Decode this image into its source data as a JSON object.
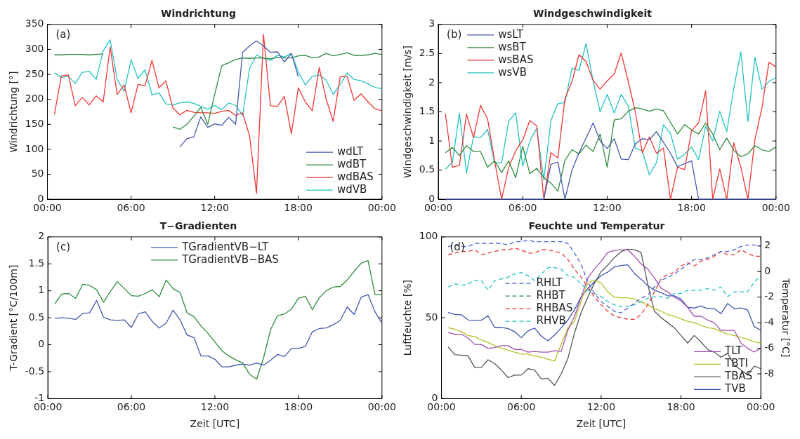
{
  "chart_data": [
    {
      "type": "line",
      "title": "Windrichtung",
      "ylabel": "Windrichtung [°]",
      "annotations": [
        "(a)"
      ],
      "legend": "bottom right",
      "grid": false,
      "x": [
        0.5,
        1,
        1.5,
        2,
        2.5,
        3,
        3.5,
        4,
        4.5,
        5,
        5.5,
        6,
        6.5,
        7,
        7.5,
        8,
        8.5,
        9,
        9.5,
        10,
        10.5,
        11,
        11.5,
        12,
        12.5,
        13,
        13.5,
        14,
        14.5,
        15,
        15.5,
        16,
        16.5,
        17,
        17.5,
        18,
        18.5,
        19,
        19.5,
        20,
        20.5,
        21,
        21.5,
        22,
        22.5,
        23,
        23.5,
        24
      ],
      "xlim": [
        0,
        24
      ],
      "xticks": [
        {
          "value": 0,
          "label": "00:00"
        },
        {
          "value": 6,
          "label": "06:00"
        },
        {
          "value": 12,
          "label": "12:00"
        },
        {
          "value": 18,
          "label": "18:00"
        },
        {
          "value": 24,
          "label": "00:00"
        }
      ],
      "ylim": [
        0,
        350
      ],
      "yticks": [
        0,
        50,
        100,
        150,
        200,
        250,
        300,
        350
      ],
      "series": [
        {
          "name": "wdLT",
          "color": "#4357ad",
          "values": [
            null,
            null,
            null,
            null,
            null,
            null,
            null,
            null,
            null,
            null,
            null,
            null,
            null,
            null,
            null,
            null,
            null,
            null,
            105,
            121,
            125,
            165,
            144,
            151,
            148,
            164,
            150,
            294,
            307,
            317,
            307,
            294,
            295,
            275,
            292,
            245,
            null,
            null,
            null,
            null,
            null,
            null,
            null,
            null,
            null,
            null,
            null,
            null
          ]
        },
        {
          "name": "wdBT",
          "color": "#2e8b3c",
          "values": [
            289,
            289,
            290,
            290,
            290,
            289,
            290,
            291,
            null,
            null,
            null,
            null,
            null,
            null,
            null,
            null,
            null,
            145,
            140,
            150,
            166,
            184,
            150,
            210,
            267,
            273,
            280,
            283,
            282,
            283,
            283,
            281,
            284,
            283,
            283,
            287,
            288,
            283,
            285,
            292,
            287,
            290,
            293,
            288,
            288,
            289,
            292,
            290
          ]
        },
        {
          "name": "wdBAS",
          "color": "#f03535",
          "values": [
            170,
            247,
            249,
            187,
            204,
            189,
            207,
            195,
            305,
            210,
            229,
            173,
            230,
            227,
            278,
            223,
            237,
            183,
            169,
            178,
            174,
            173,
            173,
            172,
            176,
            178,
            168,
            173,
            127,
            12,
            330,
            187,
            186,
            206,
            131,
            223,
            195,
            177,
            264,
            200,
            156,
            245,
            246,
            198,
            211,
            195,
            181,
            177
          ]
        },
        {
          "name": "wdVB",
          "color": "#25c2c2",
          "values": [
            253,
            244,
            246,
            232,
            254,
            256,
            240,
            297,
            319,
            240,
            216,
            279,
            242,
            259,
            209,
            213,
            191,
            189,
            193,
            195,
            192,
            186,
            180,
            188,
            179,
            193,
            188,
            168,
            262,
            289,
            282,
            278,
            288,
            285,
            292,
            255,
            229,
            246,
            249,
            238,
            210,
            230,
            253,
            240,
            237,
            231,
            224,
            221
          ]
        }
      ]
    },
    {
      "type": "line",
      "title": "Windgeschwindigkeit",
      "ylabel": "Windgeschwindigkeit [m/s]",
      "annotations": [
        "(b)"
      ],
      "legend": "top left",
      "grid": false,
      "x": [
        0.5,
        1,
        1.5,
        2,
        2.5,
        3,
        3.5,
        4,
        4.5,
        5,
        5.5,
        6,
        6.5,
        7,
        7.5,
        8,
        8.5,
        9,
        9.5,
        10,
        10.5,
        11,
        11.5,
        12,
        12.5,
        13,
        13.5,
        14,
        14.5,
        15,
        15.5,
        16,
        16.5,
        17,
        17.5,
        18,
        18.5,
        19,
        19.5,
        20,
        20.5,
        21,
        21.5,
        22,
        22.5,
        23,
        23.5,
        24
      ],
      "xlim": [
        0,
        24
      ],
      "xticks": [
        {
          "value": 0,
          "label": "00:00"
        },
        {
          "value": 6,
          "label": "06:00"
        },
        {
          "value": 12,
          "label": "12:00"
        },
        {
          "value": 18,
          "label": "18:00"
        },
        {
          "value": 24,
          "label": "00:00"
        }
      ],
      "ylim": [
        0,
        3
      ],
      "yticks": [
        0,
        0.5,
        1,
        1.5,
        2,
        2.5,
        3
      ],
      "series": [
        {
          "name": "wsLT",
          "color": "#4357ad",
          "values": [
            0,
            0,
            0,
            0,
            0,
            0,
            0,
            0,
            0,
            0,
            0,
            0,
            0,
            0,
            0,
            0.6,
            0.64,
            0,
            0.5,
            0.8,
            1.05,
            1.31,
            1.0,
            0.87,
            1.04,
            0.69,
            0.68,
            0.95,
            1.04,
            1.02,
            1.16,
            0.98,
            0.79,
            0.56,
            0.61,
            0.66,
            0,
            0,
            0,
            0,
            0,
            0,
            0,
            0,
            0,
            0,
            0,
            0
          ]
        },
        {
          "name": "wsBT",
          "color": "#2e8b3c",
          "values": [
            0.8,
            0.89,
            0.75,
            0.92,
            0.82,
            0.82,
            0.55,
            0.66,
            0.46,
            0.66,
            0.37,
            0.91,
            0.44,
            0.53,
            0.37,
            0.28,
            0.14,
            0.67,
            0.85,
            0.78,
            0.93,
            0.82,
            1.12,
            0.55,
            1.36,
            1.38,
            1.51,
            1.57,
            1.55,
            1.51,
            1.55,
            1.52,
            1.32,
            1.12,
            1.28,
            1.19,
            1.12,
            1.31,
            1.12,
            0.85,
            1.05,
            0.84,
            0.73,
            0.78,
            0.92,
            0.85,
            0.82,
            0.9
          ]
        },
        {
          "name": "wsBAS",
          "color": "#f03535",
          "values": [
            1.47,
            0.55,
            0.58,
            1.46,
            1.06,
            1.61,
            1.38,
            0.66,
            0,
            0.55,
            0.83,
            1.02,
            1.35,
            1.26,
            0,
            0.8,
            0.71,
            1.73,
            2.02,
            2.48,
            2.36,
            2.04,
            1.89,
            2.03,
            2.15,
            2.51,
            2.02,
            1.5,
            0.8,
            1.07,
            0.79,
            0.88,
            0,
            0.55,
            0.51,
            1.18,
            1.31,
            1.86,
            0,
            0.52,
            0,
            0.97,
            0.55,
            0,
            1.02,
            1.57,
            2.35,
            2.27
          ]
        },
        {
          "name": "wsVB",
          "color": "#25c2c2",
          "values": [
            0.52,
            0.63,
            1.48,
            0.45,
            1.07,
            1.06,
            1.2,
            0.62,
            0.63,
            1.34,
            1.48,
            0.57,
            1.0,
            1.22,
            0.33,
            1.35,
            1.64,
            1.66,
            2.25,
            2.21,
            2.67,
            2.03,
            1.5,
            1.8,
            1.48,
            1.8,
            1.6,
            0.88,
            0.83,
            0.42,
            0.63,
            1.28,
            1.13,
            0.69,
            0.77,
            0.9,
            0.68,
            1.25,
            1.0,
            1.51,
            1.16,
            1.9,
            2.53,
            1.33,
            2.44,
            1.89,
            2.02,
            2.09
          ]
        }
      ]
    },
    {
      "type": "line",
      "title": "T−Gradienten",
      "xlabel": "Zeit [UTC]",
      "ylabel": "T-Gradient [°C/100m]",
      "annotations": [
        "(c)"
      ],
      "legend": "top",
      "grid": false,
      "x": [
        0.5,
        1,
        1.5,
        2,
        2.5,
        3,
        3.5,
        4,
        4.5,
        5,
        5.5,
        6,
        6.5,
        7,
        7.5,
        8,
        8.5,
        9,
        9.5,
        10,
        10.5,
        11,
        11.5,
        12,
        12.5,
        13,
        13.5,
        14,
        14.5,
        15,
        15.5,
        16,
        16.5,
        17,
        17.5,
        18,
        18.5,
        19,
        19.5,
        20,
        20.5,
        21,
        21.5,
        22,
        22.5,
        23,
        23.5,
        24
      ],
      "xlim": [
        0,
        24
      ],
      "xticks": [
        {
          "value": 0,
          "label": "00:00"
        },
        {
          "value": 6,
          "label": "06:00"
        },
        {
          "value": 12,
          "label": "12:00"
        },
        {
          "value": 18,
          "label": "18:00"
        },
        {
          "value": 24,
          "label": "00:00"
        }
      ],
      "ylim": [
        -1,
        2
      ],
      "yticks": [
        -1,
        -0.5,
        0,
        0.5,
        1,
        1.5,
        2
      ],
      "series": [
        {
          "name": "TGradientVB−LT",
          "color": "#4357ad",
          "values": [
            0.49,
            0.5,
            0.49,
            0.47,
            0.58,
            0.59,
            0.82,
            0.51,
            0.46,
            0.45,
            0.46,
            0.32,
            0.57,
            0.61,
            0.43,
            0.31,
            0.4,
            0.64,
            0.46,
            0.18,
            0.13,
            -0.21,
            -0.21,
            -0.27,
            -0.41,
            -0.41,
            -0.38,
            -0.36,
            -0.38,
            -0.34,
            -0.38,
            -0.29,
            -0.18,
            -0.22,
            -0.07,
            -0.07,
            -0.03,
            0.24,
            0.3,
            0.31,
            0.37,
            0.45,
            0.7,
            0.56,
            0.88,
            0.93,
            0.61,
            0.4
          ]
        },
        {
          "name": "TGradientVB−BAS",
          "color": "#2e8b3c",
          "values": [
            0.76,
            0.94,
            0.95,
            0.86,
            1.12,
            1.1,
            1.02,
            0.79,
            0.99,
            1.17,
            1.04,
            0.91,
            0.9,
            0.95,
            1.02,
            0.89,
            1.2,
            1.04,
            0.97,
            0.59,
            0.52,
            0.35,
            0.21,
            0.05,
            -0.11,
            -0.21,
            -0.28,
            -0.34,
            -0.55,
            -0.64,
            -0.24,
            0.28,
            0.54,
            0.57,
            0.66,
            0.86,
            0.9,
            0.65,
            0.87,
            1.0,
            1.07,
            1.08,
            1.2,
            1.36,
            1.51,
            1.56,
            0.93,
            0.93
          ]
        }
      ]
    },
    {
      "type": "line",
      "title": "Feuchte und Temperatur",
      "xlabel": "Zeit [UTC]",
      "ylabel": "Luftfeuchte [%]",
      "y2label": "Temperatur [°C]",
      "annotations": [
        "(d)"
      ],
      "legend": [
        "left",
        "bottom right"
      ],
      "grid": false,
      "x": [
        0.5,
        1,
        1.5,
        2,
        2.5,
        3,
        3.5,
        4,
        4.5,
        5,
        5.5,
        6,
        6.5,
        7,
        7.5,
        8,
        8.5,
        9,
        9.5,
        10,
        10.5,
        11,
        11.5,
        12,
        12.5,
        13,
        13.5,
        14,
        14.5,
        15,
        15.5,
        16,
        16.5,
        17,
        17.5,
        18,
        18.5,
        19,
        19.5,
        20,
        20.5,
        21,
        21.5,
        22,
        22.5,
        23,
        23.5,
        24
      ],
      "xlim": [
        0,
        24
      ],
      "xticks": [
        {
          "value": 0,
          "label": "00:00"
        },
        {
          "value": 6,
          "label": "06:00"
        },
        {
          "value": 12,
          "label": "12:00"
        },
        {
          "value": 18,
          "label": "18:00"
        },
        {
          "value": 24,
          "label": "00:00"
        }
      ],
      "ylim": [
        0,
        100
      ],
      "yticks": [
        0,
        50,
        100
      ],
      "y2lim": [
        -9.94,
        2.71
      ],
      "y2ticks": [
        -8,
        -6,
        -4,
        -2,
        0,
        2
      ],
      "series": [
        {
          "name": "RHLT",
          "color": "#4a62d0",
          "line_style": "dashed",
          "values": [
            94,
            95,
            94,
            94,
            96,
            96,
            96,
            96,
            96,
            95,
            97,
            97,
            98,
            97,
            97,
            97,
            97,
            97,
            96,
            90,
            83,
            72,
            65,
            60,
            57,
            54,
            53,
            56,
            59,
            62,
            64,
            69,
            73,
            75,
            77,
            80,
            83,
            86,
            86,
            87,
            89,
            91,
            91,
            92,
            94,
            95,
            95,
            94
          ]
        },
        {
          "name": "RHBT",
          "color": "#2e8b3c",
          "line_style": "dashed",
          "values": [
            null,
            null,
            null,
            null,
            null,
            null,
            null,
            null,
            null,
            null,
            null,
            null,
            null,
            null,
            null,
            null,
            null,
            null,
            null,
            null,
            null,
            null,
            null,
            null,
            null,
            null,
            null,
            null,
            null,
            null,
            null,
            null,
            null,
            null,
            null,
            null,
            null,
            null,
            null,
            null,
            null,
            null,
            null,
            null,
            null,
            null,
            null,
            null
          ]
        },
        {
          "name": "RHBAS",
          "color": "#f03535",
          "line_style": "dashed",
          "values": [
            89,
            90,
            91,
            91,
            92,
            89,
            90,
            91,
            92,
            92,
            93,
            92,
            90,
            90,
            92,
            92,
            91,
            90,
            86,
            80,
            75,
            69,
            63,
            58,
            54,
            51,
            50,
            49,
            49,
            52,
            58,
            66,
            74,
            77,
            78,
            82,
            84,
            82,
            85,
            86,
            88,
            91,
            89,
            89,
            92,
            90,
            88,
            88
          ]
        },
        {
          "name": "RHVB",
          "color": "#25c2c2",
          "line_style": "dashed",
          "values": [
            69,
            71,
            70,
            71,
            73,
            73,
            67,
            73,
            74,
            75,
            77,
            78,
            76,
            73,
            77,
            81,
            81,
            80,
            76,
            75,
            71,
            67,
            65,
            63,
            60,
            58,
            57,
            57,
            58,
            60,
            62,
            63,
            63,
            62,
            65,
            65,
            67,
            67,
            67,
            68,
            67,
            69,
            63,
            66,
            66,
            66,
            72,
            76
          ]
        },
        {
          "name": "TLT",
          "color": "#a04fb0",
          "axis": "y2",
          "values": [
            -4.77,
            -4.9,
            -4.9,
            -5.2,
            -5.7,
            -5.7,
            -6.0,
            -5.95,
            -5.8,
            -5.8,
            -6.1,
            -6.1,
            -6.3,
            -6.25,
            -6.3,
            -6.3,
            -6.2,
            -6.25,
            -4.6,
            -3.5,
            -2.0,
            -0.5,
            0.2,
            0.8,
            1.5,
            1.65,
            1.7,
            1.7,
            1.2,
            0.6,
            0.2,
            -0.5,
            -1.3,
            -1.6,
            -2.0,
            -2.3,
            -2.8,
            -3.5,
            -3.5,
            -3.8,
            -4.0,
            -4.6,
            -4.6,
            -4.6,
            -5.6,
            -6.0,
            -6.3,
            -6.0
          ]
        },
        {
          "name": "TBTI",
          "color": "#b5bf24",
          "axis": "y2",
          "values": [
            -4.4,
            -4.5,
            -4.7,
            -5.0,
            -5.1,
            -5.35,
            -5.55,
            -5.8,
            -6.0,
            -6.15,
            -6.3,
            -6.45,
            -6.45,
            -6.6,
            -6.7,
            -6.85,
            -7.0,
            -5.7,
            -4.4,
            -3.9,
            -2.3,
            -0.9,
            -0.66,
            -0.9,
            -1.6,
            -2.0,
            -2.05,
            -2.05,
            -2.15,
            -2.4,
            -2.6,
            -2.9,
            -3.1,
            -3.35,
            -3.5,
            -3.7,
            -3.9,
            -4.0,
            -4.2,
            -4.4,
            -4.45,
            -4.7,
            -4.9,
            -5.0,
            -5.15,
            -5.3,
            -5.5,
            -5.6
          ]
        },
        {
          "name": "TBAS",
          "color": "#555555",
          "axis": "y2",
          "values": [
            -5.9,
            -6.5,
            -6.55,
            -6.6,
            -7.5,
            -7.5,
            -6.9,
            -7.2,
            -7.7,
            -8.3,
            -8.1,
            -8.1,
            -7.6,
            -7.7,
            -8.4,
            -8.35,
            -8.9,
            -8.0,
            -6.8,
            -4.8,
            -3.2,
            -2.0,
            -0.9,
            0,
            0.5,
            1.1,
            1.55,
            1.75,
            1.7,
            1.5,
            -1.0,
            -3.1,
            -3.6,
            -4.0,
            -4.4,
            -5.0,
            -5.6,
            -5.0,
            -5.5,
            -6.1,
            -6.3,
            -6.7,
            -6.4,
            -7.3,
            -7.7,
            -8.1,
            -7.4,
            -7.6
          ]
        },
        {
          "name": "TVB",
          "color": "#3a55b0",
          "axis": "y2",
          "values": [
            -3.21,
            -3.36,
            -3.38,
            -3.79,
            -3.81,
            -3.81,
            -3.46,
            -4.39,
            -4.38,
            -4.45,
            -4.71,
            -5.18,
            -4.64,
            -4.43,
            -5.05,
            -5.42,
            -4.97,
            -4.4,
            -3.8,
            -2.99,
            -1.96,
            -1.35,
            -0.8,
            -0.32,
            -0.05,
            0.37,
            0.47,
            0.52,
            -0.15,
            -0.6,
            -1.1,
            -1.45,
            -1.65,
            -1.9,
            -1.9,
            -2.15,
            -2.8,
            -2.86,
            -2.7,
            -2.9,
            -2.9,
            -3.3,
            -2.5,
            -2.9,
            -2.85,
            -3.0,
            -4.3,
            -4.6
          ]
        }
      ]
    }
  ]
}
